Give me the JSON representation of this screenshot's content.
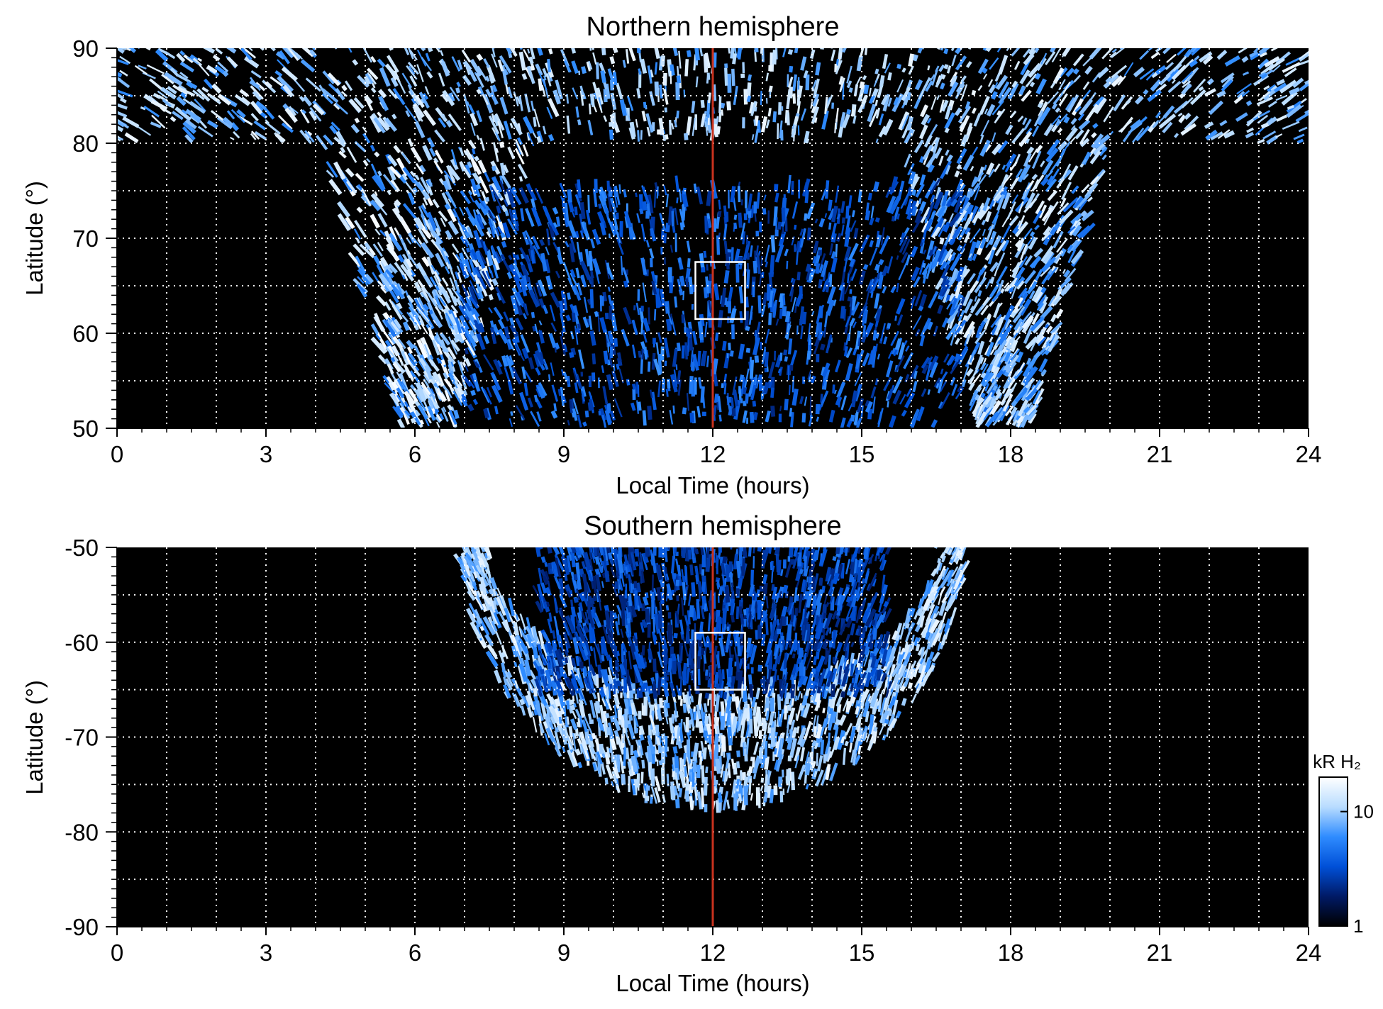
{
  "chart_data": [
    {
      "type": "heatmap",
      "title": "Northern hemisphere",
      "xlabel": "Local Time (hours)",
      "ylabel": "Latitude (°)",
      "xlim": [
        0,
        24
      ],
      "ylim": [
        50,
        90
      ],
      "x_ticks": [
        0,
        3,
        6,
        9,
        12,
        15,
        18,
        21,
        24
      ],
      "x_tick_labels": [
        "0",
        "3",
        "6",
        "9",
        "12",
        "15",
        "18",
        "21",
        "24"
      ],
      "y_ticks": [
        50,
        60,
        70,
        80,
        90
      ],
      "y_tick_labels": [
        "50",
        "60",
        "70",
        "80",
        "90"
      ],
      "grid": true,
      "grid_style": "dotted white",
      "x_grid_step": 1,
      "y_grid_step": 5,
      "colormap": "black-blue-white",
      "reference_line": {
        "x": 12,
        "color": "#c8321e"
      },
      "box": {
        "x": [
          11.65,
          12.65
        ],
        "y": [
          61.5,
          67.5
        ],
        "color": "#ffffff"
      },
      "emission_regions": [
        {
          "description": "high-latitude cap",
          "lat_min": 80,
          "lat_max": 90,
          "lt_min": 0,
          "lt_max": 24,
          "intensity_kR": 12
        },
        {
          "description": "dawn band",
          "lt_center": 6.3,
          "lat_min": 50,
          "lat_max": 80,
          "intensity_kR": 14
        },
        {
          "description": "dusk band",
          "lt_center": 17.8,
          "lat_min": 50,
          "lat_max": 80,
          "intensity_kR": 12
        },
        {
          "description": "dayside speckle",
          "lt_min": 7,
          "lt_max": 17,
          "lat_min": 50,
          "lat_max": 75,
          "intensity_kR": 5
        }
      ]
    },
    {
      "type": "heatmap",
      "title": "Southern hemisphere",
      "xlabel": "Local Time (hours)",
      "ylabel": "Latitude (°)",
      "xlim": [
        0,
        24
      ],
      "ylim": [
        -90,
        -50
      ],
      "x_ticks": [
        0,
        3,
        6,
        9,
        12,
        15,
        18,
        21,
        24
      ],
      "x_tick_labels": [
        "0",
        "3",
        "6",
        "9",
        "12",
        "15",
        "18",
        "21",
        "24"
      ],
      "y_ticks": [
        -90,
        -80,
        -70,
        -60,
        -50
      ],
      "y_tick_labels": [
        "-90",
        "-80",
        "-70",
        "-60",
        "-50"
      ],
      "grid": true,
      "grid_style": "dotted white",
      "x_grid_step": 1,
      "y_grid_step": 5,
      "colormap": "black-blue-white",
      "reference_line": {
        "x": 12,
        "color": "#c8321e"
      },
      "box": {
        "x": [
          11.65,
          12.65
        ],
        "y": [
          -65,
          -59
        ],
        "color": "#ffffff"
      },
      "emission_regions": [
        {
          "description": "auroral oval ring",
          "lt_min": 7,
          "lt_max": 17,
          "lat_min": -79,
          "lat_max": -50,
          "intensity_kR": 12
        },
        {
          "description": "dayside speckle",
          "lt_min": 8.5,
          "lt_max": 15.5,
          "lat_min": -66,
          "lat_max": -50,
          "intensity_kR": 4
        }
      ]
    }
  ],
  "colorbar": {
    "label": "kR H₂",
    "scale": "log",
    "range": [
      1,
      20
    ],
    "ticks": [
      1,
      10
    ],
    "tick_labels": [
      "1",
      "10"
    ],
    "colors": [
      "#000000",
      "#001a66",
      "#0050d8",
      "#2f8cff",
      "#b8dcff",
      "#ffffff"
    ]
  }
}
